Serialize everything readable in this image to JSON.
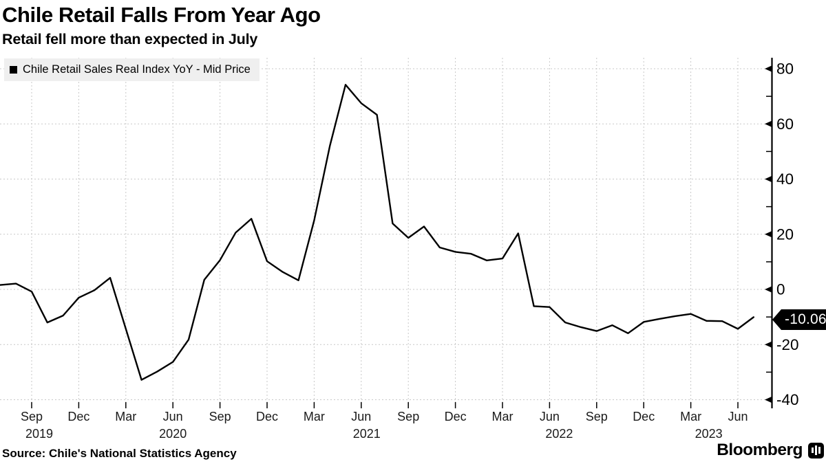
{
  "header": {
    "title": "Chile Retail Falls From Year Ago",
    "subtitle": "Retail fell more than expected in July"
  },
  "legend": {
    "series_label": "Chile Retail Sales Real Index YoY - Mid Price"
  },
  "last_price_tag": {
    "text": "-10.06"
  },
  "footer": {
    "source": "Source: Chile's National Statistics Agency",
    "brand": "Bloomberg"
  },
  "colors": {
    "line": "#000000",
    "grid": "#c7c7c7",
    "axis": "#000000",
    "legend_bg": "#efefef",
    "tag_bg": "#000000",
    "tag_text": "#ffffff",
    "month_label": "#1a1a1a",
    "tick_label": "#000000"
  },
  "chart_data": {
    "type": "line",
    "title": "Chile Retail Falls From Year Ago",
    "subtitle": "Retail fell more than expected in July",
    "grid": true,
    "legend_position": "top-left",
    "y_axis_side": "right",
    "ylim": [
      -42.5,
      84
    ],
    "y_major_ticks": [
      80,
      60,
      40,
      20,
      0,
      -20,
      -40
    ],
    "y_minor_ticks": [
      70,
      50,
      30,
      10,
      -10,
      -30
    ],
    "x_quarter_ticks": [
      "Sep 2019",
      "Dec 2019",
      "Mar 2020",
      "Jun 2020",
      "Sep 2020",
      "Dec 2020",
      "Mar 2021",
      "Jun 2021",
      "Sep 2021",
      "Dec 2021",
      "Mar 2022",
      "Jun 2022",
      "Sep 2022",
      "Dec 2022",
      "Mar 2023",
      "Jun 2023"
    ],
    "year_labels": [
      {
        "text": "2019",
        "tick_index": 0,
        "dx": 11
      },
      {
        "text": "2020",
        "tick_index": 3,
        "dx": 0
      },
      {
        "text": "2021",
        "tick_index": 7,
        "dx": 8
      },
      {
        "text": "2022",
        "tick_index": 11,
        "dx": 14
      },
      {
        "text": "2023",
        "tick_index": 14,
        "dx": 26
      }
    ],
    "last_value": -10.06,
    "series": [
      {
        "name": "Chile Retail Sales Real Index YoY - Mid Price",
        "x": [
          "Jul 2019",
          "Aug 2019",
          "Sep 2019",
          "Oct 2019",
          "Nov 2019",
          "Dec 2019",
          "Jan 2020",
          "Feb 2020",
          "Mar 2020",
          "Apr 2020",
          "May 2020",
          "Jun 2020",
          "Jul 2020",
          "Aug 2020",
          "Sep 2020",
          "Oct 2020",
          "Nov 2020",
          "Dec 2020",
          "Jan 2021",
          "Feb 2021",
          "Mar 2021",
          "Apr 2021",
          "May 2021",
          "Jun 2021",
          "Jul 2021",
          "Aug 2021",
          "Sep 2021",
          "Oct 2021",
          "Nov 2021",
          "Dec 2021",
          "Jan 2022",
          "Feb 2022",
          "Mar 2022",
          "Apr 2022",
          "May 2022",
          "Jun 2022",
          "Jul 2022",
          "Aug 2022",
          "Sep 2022",
          "Oct 2022",
          "Nov 2022",
          "Dec 2022",
          "Jan 2023",
          "Feb 2023",
          "Mar 2023",
          "Apr 2023",
          "May 2023",
          "Jun 2023",
          "Jul 2023"
        ],
        "values": [
          1.6,
          2.1,
          -0.8,
          -12.0,
          -9.5,
          -3.0,
          -0.3,
          4.2,
          -14.3,
          -32.8,
          -29.8,
          -26.3,
          -18.2,
          3.5,
          10.6,
          20.6,
          25.6,
          10.2,
          6.3,
          3.3,
          25.0,
          52.0,
          74.2,
          67.5,
          63.3,
          23.9,
          18.7,
          22.8,
          15.2,
          13.6,
          12.9,
          10.5,
          11.2,
          20.3,
          -6.1,
          -6.4,
          -12.0,
          -13.7,
          -15.1,
          -13.0,
          -15.9,
          -11.8,
          -10.7,
          -9.7,
          -8.9,
          -11.4,
          -11.5,
          -14.3,
          -10.06
        ]
      }
    ]
  }
}
